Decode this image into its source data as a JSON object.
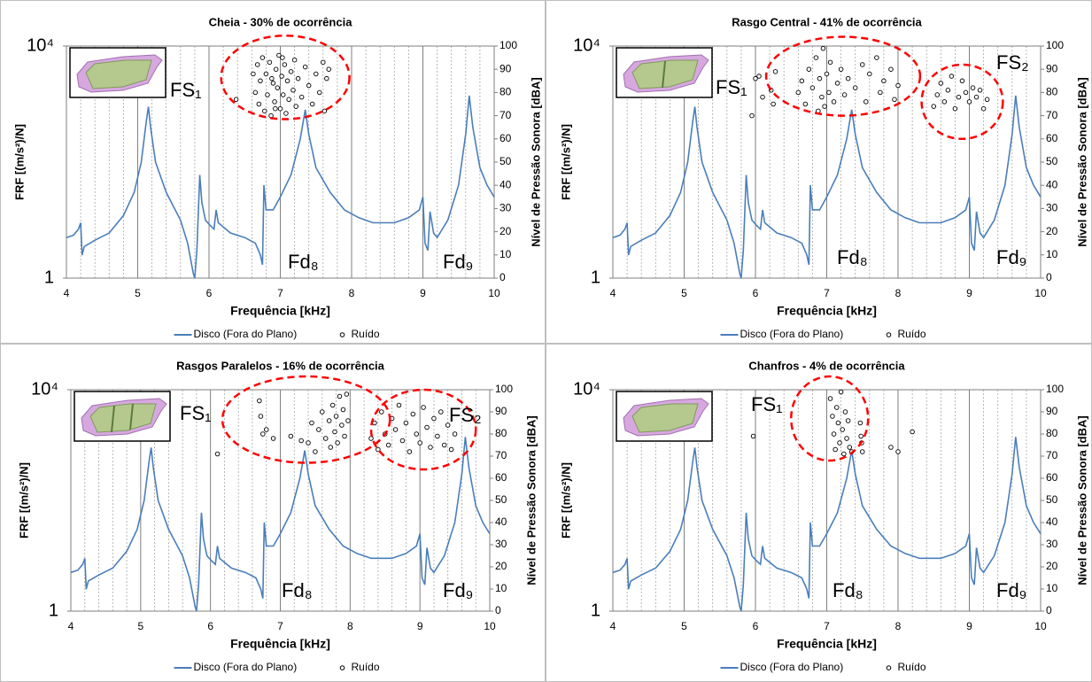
{
  "chart_data": [
    {
      "type": "combo",
      "title": "Cheia - 30% de ocorrência",
      "xlabel": "Frequência [kHz]",
      "ylabel": "FRF [(m/s²)/N]",
      "y2label": "Nível de Pressão Sonora [dBA]",
      "xlim": [
        4,
        10
      ],
      "xticks": [
        4,
        5,
        6,
        7,
        8,
        9,
        10
      ],
      "ylim": [
        1,
        10000
      ],
      "yscale": "log",
      "yticks": [
        1,
        {
          "value": 10000,
          "label": "10⁴"
        }
      ],
      "y2lim": [
        0,
        100
      ],
      "y2ticks": [
        0,
        10,
        20,
        30,
        40,
        50,
        60,
        70,
        80,
        90,
        100
      ],
      "grid": true,
      "legend": "bottom",
      "annotations": [
        "FS₁",
        "Fd₈",
        "Fd₉"
      ],
      "series": [
        {
          "name": "Disco (Fora do Plano)",
          "type": "line",
          "color": "#4a7ebb",
          "x": [
            4.0,
            4.1,
            4.17,
            4.2,
            4.22,
            4.25,
            4.4,
            4.6,
            4.8,
            4.95,
            5.05,
            5.12,
            5.15,
            5.18,
            5.25,
            5.4,
            5.6,
            5.7,
            5.78,
            5.8,
            5.83,
            5.87,
            5.9,
            5.95,
            6.02,
            6.07,
            6.1,
            6.13,
            6.3,
            6.5,
            6.65,
            6.72,
            6.75,
            6.77,
            6.8,
            6.9,
            7.0,
            7.15,
            7.28,
            7.35,
            7.4,
            7.5,
            7.7,
            7.9,
            8.1,
            8.3,
            8.6,
            8.8,
            8.95,
            9.0,
            9.03,
            9.07,
            9.1,
            9.15,
            9.2,
            9.35,
            9.5,
            9.6,
            9.65,
            9.7,
            9.8,
            9.9,
            10.0
          ],
          "values": [
            5,
            5.5,
            7,
            9,
            2.5,
            3.5,
            4.5,
            6,
            12,
            30,
            100,
            500,
            900,
            400,
            100,
            30,
            10,
            4,
            1.2,
            1,
            3,
            60,
            20,
            10,
            8,
            7,
            15,
            9,
            6,
            5,
            4,
            2.5,
            1.7,
            40,
            15,
            15,
            25,
            60,
            250,
            800,
            300,
            80,
            30,
            15,
            11,
            9,
            9,
            11,
            15,
            25,
            4,
            3,
            14,
            6,
            5,
            10,
            40,
            300,
            1400,
            400,
            80,
            40,
            25
          ]
        },
        {
          "name": "Ruído",
          "type": "scatter",
          "axis": "y2",
          "color": "#000000",
          "x": [
            6.38,
            6.62,
            6.65,
            6.68,
            6.7,
            6.72,
            6.75,
            6.78,
            6.8,
            6.82,
            6.85,
            6.87,
            6.9,
            6.92,
            6.94,
            6.96,
            6.98,
            7.0,
            7.02,
            7.04,
            7.06,
            7.08,
            7.1,
            7.12,
            7.15,
            7.18,
            7.2,
            7.22,
            7.25,
            7.3,
            7.35,
            7.4,
            7.45,
            7.5,
            7.55,
            7.6,
            7.62,
            7.65,
            7.68,
            6.88,
            6.93,
            7.03
          ],
          "values": [
            77,
            88,
            80,
            92,
            75,
            85,
            95,
            72,
            88,
            79,
            93,
            70,
            84,
            76,
            90,
            82,
            96,
            73,
            87,
            79,
            92,
            71,
            85,
            77,
            89,
            81,
            94,
            74,
            86,
            78,
            91,
            83,
            75,
            88,
            80,
            93,
            72,
            86,
            90,
            86,
            73,
            95
          ]
        }
      ]
    },
    {
      "type": "combo",
      "title": "Rasgo Central - 41% de ocorrência",
      "xlabel": "Frequência [kHz]",
      "ylabel": "FRF [(m/s²)/N]",
      "y2label": "Nível de Pressão Sonora [dBA]",
      "xlim": [
        4,
        10
      ],
      "xticks": [
        4,
        5,
        6,
        7,
        8,
        9,
        10
      ],
      "ylim": [
        1,
        10000
      ],
      "yscale": "log",
      "yticks": [
        1,
        {
          "value": 10000,
          "label": "10⁴"
        }
      ],
      "y2lim": [
        0,
        100
      ],
      "y2ticks": [
        0,
        10,
        20,
        30,
        40,
        50,
        60,
        70,
        80,
        90,
        100
      ],
      "grid": true,
      "legend": "bottom",
      "annotations": [
        "FS₁",
        "FS₂",
        "Fd₈",
        "Fd₉"
      ],
      "series": [
        {
          "name": "Disco (Fora do Plano)",
          "type": "line",
          "color": "#4a7ebb",
          "x": [
            4.0,
            4.1,
            4.17,
            4.2,
            4.22,
            4.25,
            4.4,
            4.6,
            4.8,
            4.95,
            5.05,
            5.12,
            5.15,
            5.18,
            5.25,
            5.4,
            5.6,
            5.7,
            5.78,
            5.8,
            5.83,
            5.87,
            5.9,
            5.95,
            6.02,
            6.07,
            6.1,
            6.13,
            6.3,
            6.5,
            6.65,
            6.72,
            6.75,
            6.77,
            6.8,
            6.9,
            7.0,
            7.15,
            7.28,
            7.35,
            7.4,
            7.5,
            7.7,
            7.9,
            8.1,
            8.3,
            8.6,
            8.8,
            8.95,
            9.0,
            9.03,
            9.07,
            9.1,
            9.15,
            9.2,
            9.35,
            9.5,
            9.6,
            9.65,
            9.7,
            9.8,
            9.9,
            10.0
          ],
          "values": [
            5,
            5.5,
            7,
            9,
            2.5,
            3.5,
            4.5,
            6,
            12,
            30,
            100,
            500,
            900,
            400,
            100,
            30,
            10,
            4,
            1.2,
            1,
            3,
            60,
            20,
            10,
            8,
            7,
            15,
            9,
            6,
            5,
            4,
            2.5,
            1.7,
            40,
            15,
            15,
            25,
            60,
            250,
            800,
            300,
            80,
            30,
            15,
            11,
            9,
            9,
            11,
            15,
            25,
            4,
            3,
            14,
            6,
            5,
            10,
            40,
            300,
            1400,
            400,
            80,
            40,
            25
          ]
        },
        {
          "name": "Ruído",
          "type": "scatter",
          "axis": "y2",
          "color": "#000000",
          "x": [
            5.95,
            6.0,
            6.05,
            6.1,
            6.22,
            6.25,
            6.28,
            6.6,
            6.65,
            6.7,
            6.75,
            6.8,
            6.85,
            6.88,
            6.9,
            6.93,
            6.95,
            6.97,
            7.0,
            7.03,
            7.05,
            7.1,
            7.15,
            7.2,
            7.25,
            7.3,
            7.4,
            7.5,
            7.55,
            7.6,
            7.7,
            7.75,
            7.8,
            7.9,
            7.95,
            8.0,
            8.5,
            8.55,
            8.6,
            8.65,
            8.7,
            8.75,
            8.8,
            8.85,
            8.9,
            8.95,
            9.0,
            9.05,
            9.1,
            9.15,
            9.2,
            9.25
          ],
          "values": [
            70,
            86,
            87,
            78,
            81,
            75,
            89,
            80,
            85,
            75,
            90,
            82,
            95,
            72,
            86,
            78,
            99,
            74,
            88,
            80,
            93,
            76,
            84,
            90,
            79,
            86,
            82,
            92,
            76,
            88,
            95,
            80,
            85,
            90,
            77,
            83,
            74,
            79,
            84,
            76,
            81,
            87,
            73,
            78,
            85,
            80,
            76,
            82,
            78,
            81,
            73,
            77
          ]
        }
      ]
    },
    {
      "type": "combo",
      "title": "Rasgos Paralelos - 16% de ocorrência",
      "xlabel": "Frequência [kHz]",
      "ylabel": "FRF [(m/s²)/N]",
      "y2label": "Nível de Pressão Sonora [dBA]",
      "xlim": [
        4,
        10
      ],
      "xticks": [
        4,
        5,
        6,
        7,
        8,
        9,
        10
      ],
      "ylim": [
        1,
        10000
      ],
      "yscale": "log",
      "yticks": [
        1,
        {
          "value": 10000,
          "label": "10⁴"
        }
      ],
      "y2lim": [
        0,
        100
      ],
      "y2ticks": [
        0,
        10,
        20,
        30,
        40,
        50,
        60,
        70,
        80,
        90,
        100
      ],
      "grid": true,
      "legend": "bottom",
      "annotations": [
        "FS₁",
        "FS₂",
        "Fd₈",
        "Fd₉"
      ],
      "series": [
        {
          "name": "Disco (Fora do Plano)",
          "type": "line",
          "color": "#4a7ebb",
          "x": [
            4.0,
            4.1,
            4.17,
            4.2,
            4.22,
            4.25,
            4.4,
            4.6,
            4.8,
            4.95,
            5.05,
            5.12,
            5.15,
            5.18,
            5.25,
            5.4,
            5.6,
            5.7,
            5.78,
            5.8,
            5.83,
            5.87,
            5.9,
            5.95,
            6.02,
            6.07,
            6.1,
            6.13,
            6.3,
            6.5,
            6.65,
            6.72,
            6.75,
            6.77,
            6.8,
            6.9,
            7.0,
            7.15,
            7.28,
            7.35,
            7.4,
            7.5,
            7.7,
            7.9,
            8.1,
            8.3,
            8.6,
            8.8,
            8.95,
            9.0,
            9.03,
            9.07,
            9.1,
            9.15,
            9.2,
            9.35,
            9.5,
            9.6,
            9.65,
            9.7,
            9.8,
            9.9,
            10.0
          ],
          "values": [
            5,
            5.5,
            7,
            9,
            2.5,
            3.5,
            4.5,
            6,
            12,
            30,
            100,
            500,
            900,
            400,
            100,
            30,
            10,
            4,
            1.2,
            1,
            3,
            60,
            20,
            10,
            8,
            7,
            15,
            9,
            6,
            5,
            4,
            2.5,
            1.7,
            40,
            15,
            15,
            25,
            60,
            250,
            800,
            300,
            80,
            30,
            15,
            11,
            9,
            9,
            11,
            15,
            25,
            4,
            3,
            14,
            6,
            5,
            10,
            40,
            300,
            1400,
            400,
            80,
            40,
            25
          ]
        },
        {
          "name": "Ruído",
          "type": "scatter",
          "axis": "y2",
          "color": "#000000",
          "x": [
            6.1,
            6.7,
            6.72,
            6.75,
            6.8,
            6.9,
            7.15,
            7.3,
            7.4,
            7.45,
            7.5,
            7.55,
            7.6,
            7.65,
            7.7,
            7.72,
            7.75,
            7.78,
            7.8,
            7.82,
            7.85,
            7.88,
            7.9,
            7.92,
            7.95,
            7.97,
            8.3,
            8.35,
            8.4,
            8.45,
            8.5,
            8.55,
            8.6,
            8.65,
            8.7,
            8.75,
            8.8,
            8.85,
            8.9,
            8.95,
            9.0,
            9.05,
            9.1,
            9.15,
            9.2,
            9.25,
            9.3,
            9.35,
            9.4,
            9.45,
            9.5
          ],
          "values": [
            71,
            95,
            88,
            80,
            82,
            78,
            79,
            77,
            76,
            85,
            72,
            82,
            90,
            78,
            86,
            74,
            93,
            81,
            88,
            76,
            97,
            84,
            91,
            79,
            98,
            86,
            78,
            85,
            73,
            90,
            80,
            75,
            87,
            82,
            93,
            77,
            85,
            72,
            89,
            80,
            76,
            92,
            83,
            74,
            87,
            79,
            90,
            75,
            84,
            73,
            80
          ]
        }
      ]
    },
    {
      "type": "combo",
      "title": "Chanfros - 4% de ocorrência",
      "xlabel": "Frequência [kHz]",
      "ylabel": "FRF [(m/s²)/N]",
      "y2label": "Nível de Pressão Sonora [dBA]",
      "xlim": [
        4,
        10
      ],
      "xticks": [
        4,
        5,
        6,
        7,
        8,
        9,
        10
      ],
      "ylim": [
        1,
        10000
      ],
      "yscale": "log",
      "yticks": [
        1,
        {
          "value": 10000,
          "label": "10⁴"
        }
      ],
      "y2lim": [
        0,
        100
      ],
      "y2ticks": [
        0,
        10,
        20,
        30,
        40,
        50,
        60,
        70,
        80,
        90,
        100
      ],
      "grid": true,
      "legend": "bottom",
      "annotations": [
        "FS₁",
        "Fd₈",
        "Fd₉"
      ],
      "series": [
        {
          "name": "Disco (Fora do Plano)",
          "type": "line",
          "color": "#4a7ebb",
          "x": [
            4.0,
            4.1,
            4.17,
            4.2,
            4.22,
            4.25,
            4.4,
            4.6,
            4.8,
            4.95,
            5.05,
            5.12,
            5.15,
            5.18,
            5.25,
            5.4,
            5.6,
            5.7,
            5.78,
            5.8,
            5.83,
            5.87,
            5.9,
            5.95,
            6.02,
            6.07,
            6.1,
            6.13,
            6.3,
            6.5,
            6.65,
            6.72,
            6.75,
            6.77,
            6.8,
            6.9,
            7.0,
            7.15,
            7.28,
            7.35,
            7.4,
            7.5,
            7.7,
            7.9,
            8.1,
            8.3,
            8.6,
            8.8,
            8.95,
            9.0,
            9.03,
            9.07,
            9.1,
            9.15,
            9.2,
            9.35,
            9.5,
            9.6,
            9.65,
            9.7,
            9.8,
            9.9,
            10.0
          ],
          "values": [
            5,
            5.5,
            7,
            9,
            2.5,
            3.5,
            4.5,
            6,
            12,
            30,
            100,
            500,
            900,
            400,
            100,
            30,
            10,
            4,
            1.2,
            1,
            3,
            60,
            20,
            10,
            8,
            7,
            15,
            9,
            6,
            5,
            4,
            2.5,
            1.7,
            40,
            15,
            15,
            25,
            60,
            250,
            800,
            300,
            80,
            30,
            15,
            11,
            9,
            9,
            11,
            15,
            25,
            4,
            3,
            14,
            6,
            5,
            10,
            40,
            300,
            1400,
            400,
            80,
            40,
            25
          ]
        },
        {
          "name": "Ruído",
          "type": "scatter",
          "axis": "y2",
          "color": "#000000",
          "x": [
            5.97,
            7.05,
            7.08,
            7.1,
            7.12,
            7.14,
            7.16,
            7.18,
            7.2,
            7.22,
            7.24,
            7.26,
            7.28,
            7.3,
            7.32,
            7.35,
            7.47,
            7.48,
            7.49,
            7.5,
            7.9,
            8.0,
            8.2
          ],
          "values": [
            79,
            96,
            88,
            80,
            73,
            92,
            85,
            76,
            99,
            82,
            71,
            90,
            78,
            86,
            74,
            72,
            85,
            79,
            76,
            72,
            74,
            72,
            81
          ]
        }
      ]
    }
  ]
}
